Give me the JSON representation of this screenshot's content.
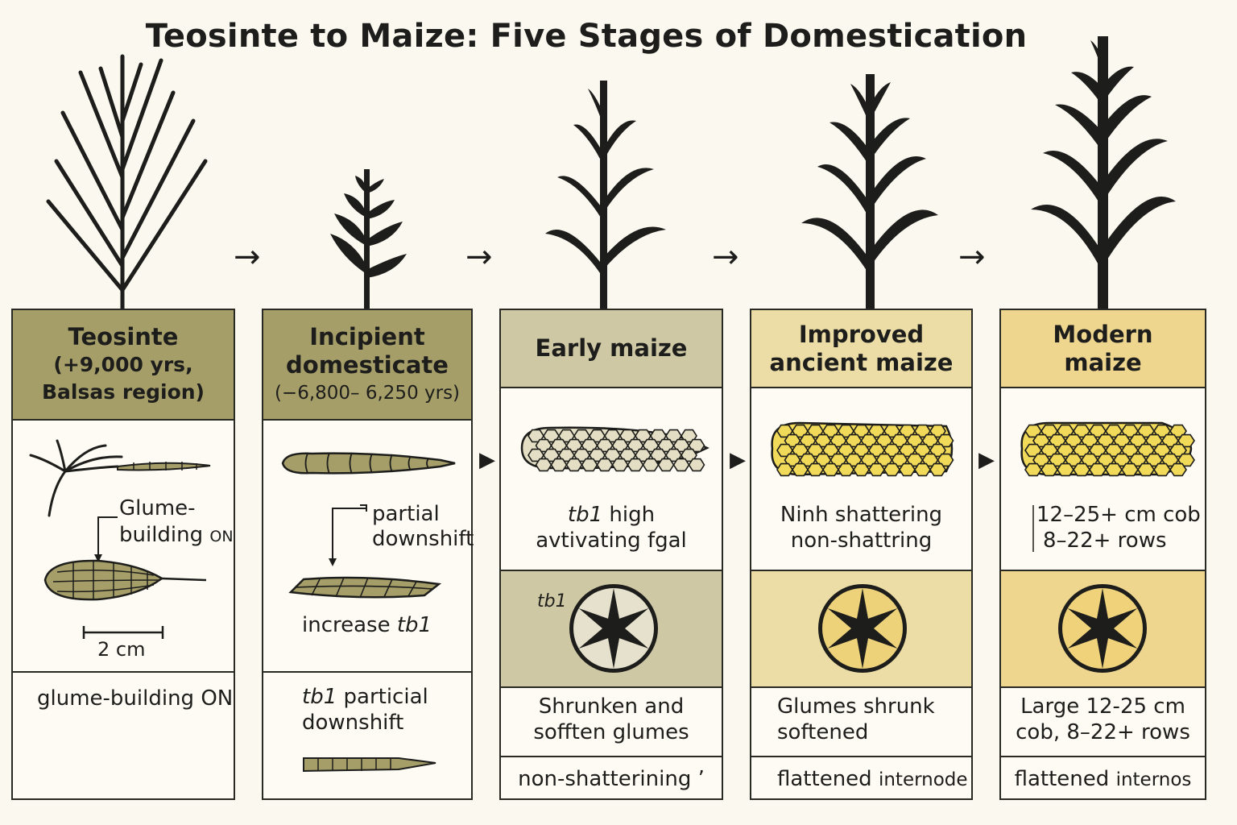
{
  "title": "Teosinte to Maize: Five Stages of Domestication",
  "colors": {
    "olive": "#a59e69",
    "olive_light": "#c7c29a",
    "tan": "#cfc8a4",
    "cream_yellow": "#ebdda5",
    "yellow": "#efd68f",
    "kernel_yellow": "#f1d95a",
    "ink": "#1d1d1b"
  },
  "stages": [
    {
      "header": [
        "Teosinte",
        "(+9,000 yrs,",
        "Balsas region)"
      ],
      "annotation_1": "Glume-",
      "annotation_2": "building",
      "annotation_2_suffix": "ON",
      "scale": "2 cm",
      "footer": "glume-building ON"
    },
    {
      "header": [
        "Incipient",
        "domesticate",
        "(−6,800– 6,250 yrs)"
      ],
      "annotation_1": "partial",
      "annotation_2": "downshift",
      "mid_text": "increase",
      "mid_gene": "tb1",
      "footer_gene": "tb1",
      "footer_1": "particial",
      "footer_2": "downshift"
    },
    {
      "header": [
        "Early maize"
      ],
      "gene": "tb1",
      "text_1": "high",
      "text_2": "avtivating fgal",
      "cross_label": "tb1",
      "desc_1": "Shrunken and",
      "desc_2": "sofften glumes",
      "footer": "non-shatterining ’"
    },
    {
      "header": [
        "Improved",
        "ancient maize"
      ],
      "text_1": "Ninh shattering",
      "text_2": "non-shattring",
      "desc_1": "Glumes shrunk",
      "desc_2": "softened",
      "footer_a": "flattened",
      "footer_b": "internode"
    },
    {
      "header": [
        "Modern",
        "maize"
      ],
      "text_1": "12–25+ cm cob",
      "text_2": "8–22+ rows",
      "desc_1": "Large 12-25 cm",
      "desc_2": "cob, 8–22+ rows",
      "footer_a": "flattened",
      "footer_b": "internos"
    }
  ],
  "arrows": {
    "top": "→",
    "mid": "▶"
  }
}
